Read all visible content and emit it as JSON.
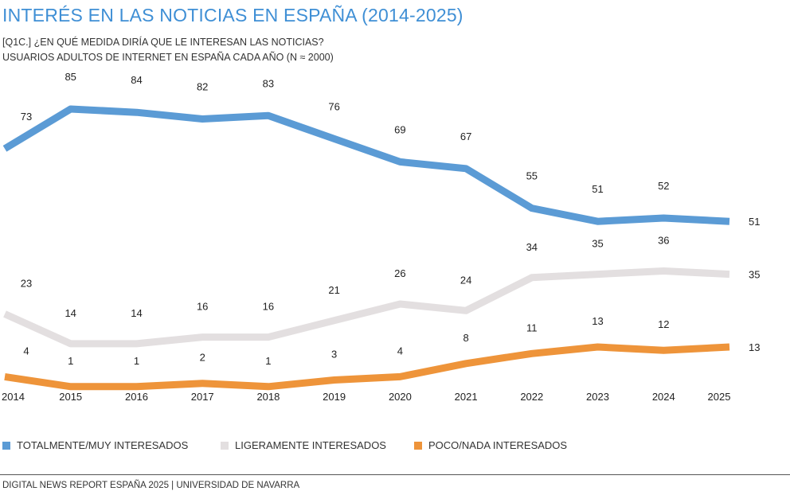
{
  "title": "INTERÉS EN LAS NOTICIAS EN ESPAÑA (2014-2025)",
  "subtitle_1": "[Q1C.] ¿EN QUÉ MEDIDA DIRÍA QUE LE INTERESAN LAS NOTICIAS?",
  "subtitle_2": "USUARIOS ADULTOS DE INTERNET EN ESPAÑA CADA AÑO (N ≈ 2000)",
  "footer": "DIGITAL NEWS REPORT ESPAÑA 2025 | UNIVERSIDAD DE NAVARRA",
  "chart_data": {
    "type": "line",
    "categories": [
      "2014",
      "2015",
      "2016",
      "2017",
      "2018",
      "2019",
      "2020",
      "2021",
      "2022",
      "2023",
      "2024",
      "2025"
    ],
    "series": [
      {
        "name": "TOTALMENTE/MUY INTERESADOS",
        "color": "#5b9bd5",
        "values": [
          73,
          85,
          84,
          82,
          83,
          76,
          69,
          67,
          55,
          51,
          52,
          51
        ]
      },
      {
        "name": "LIGERAMENTE INTERESADOS",
        "color": "#e3dfe0",
        "values": [
          23,
          14,
          14,
          16,
          16,
          21,
          26,
          24,
          34,
          35,
          36,
          35
        ]
      },
      {
        "name": "POCO/NADA INTERESADOS",
        "color": "#ee943a",
        "values": [
          4,
          1,
          1,
          2,
          1,
          3,
          4,
          8,
          11,
          13,
          12,
          13
        ]
      }
    ],
    "ylim": [
      0,
      90
    ],
    "grid": false,
    "legend_position": "bottom",
    "xlabel": "",
    "ylabel": ""
  }
}
